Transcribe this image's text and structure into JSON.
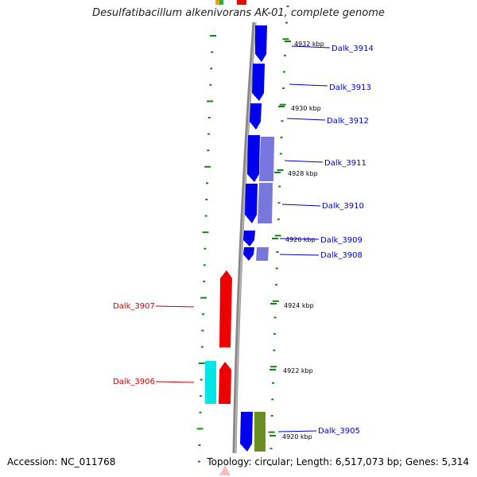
{
  "title": "Desulfatibacillum alkenivorans AK-01, complete genome",
  "footer": {
    "accession": "Accession: NC_011768",
    "summary": "Topology: circular; Length: 6,517,073 bp; Genes: 5,314"
  },
  "colors": {
    "forward_strand": "#0000ee",
    "forward_strand_alt": "#7777dd",
    "reverse_strand": "#ee0000",
    "highlight_cyan": "#00e5e5",
    "highlight_olive": "#6b8e23",
    "tick": "#118811",
    "backbone": "#888888"
  },
  "kbp_ticks": [
    {
      "label": "4932 kbp"
    },
    {
      "label": "4930 kbp"
    },
    {
      "label": "4928 kbp"
    },
    {
      "label": "4926 kbp"
    },
    {
      "label": "4924 kbp"
    },
    {
      "label": "4922 kbp"
    },
    {
      "label": "4920 kbp"
    }
  ],
  "genes_forward": [
    {
      "name": "Dalk_3914"
    },
    {
      "name": "Dalk_3913"
    },
    {
      "name": "Dalk_3912"
    },
    {
      "name": "Dalk_3911"
    },
    {
      "name": "Dalk_3910"
    },
    {
      "name": "Dalk_3909"
    },
    {
      "name": "Dalk_3908"
    },
    {
      "name": "Dalk_3905"
    }
  ],
  "genes_reverse": [
    {
      "name": "Dalk_3907"
    },
    {
      "name": "Dalk_3906"
    }
  ]
}
